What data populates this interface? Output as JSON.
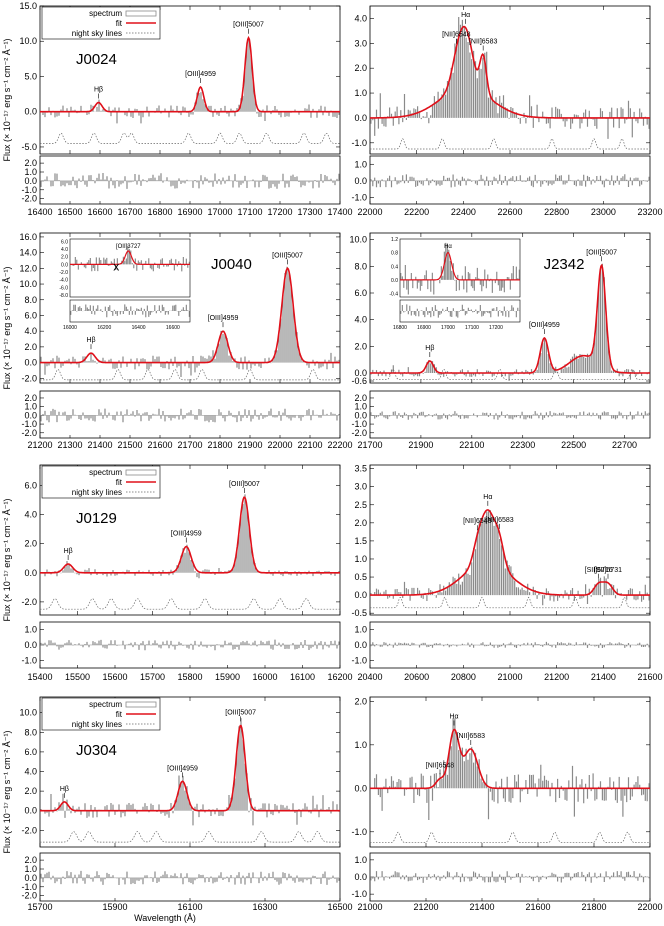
{
  "figure": {
    "ylabel": "Flux (× 10⁻¹⁷ erg s⁻¹ cm⁻² Å⁻¹)",
    "xlabel": "Wavelength (Å)",
    "colors": {
      "spectrum": "#8a8a8a",
      "fit": "#e0101a",
      "sky": "#666666",
      "axis": "#000000"
    }
  },
  "legend": {
    "spectrum": "spectrum",
    "fit": "fit",
    "sky": "night sky lines"
  },
  "chart_data": [
    {
      "id": "J0024-OIII",
      "type": "line",
      "name": "J0024",
      "xlim": [
        16400,
        17400
      ],
      "xticks": [
        16400,
        16500,
        16600,
        16700,
        16800,
        16900,
        17000,
        17100,
        17200,
        17300,
        17400
      ],
      "ylim": [
        -6,
        15
      ],
      "yticks": [
        -5,
        0,
        5,
        10,
        15
      ],
      "ytick_labels": [
        "-5.0",
        "0.0",
        "5.0",
        "10.0",
        "15.0"
      ],
      "residual": {
        "ylim": [
          -2.6,
          2.8
        ],
        "yticks": [
          -2,
          -1,
          0,
          1,
          2
        ],
        "ytick_labels": [
          "-2.0",
          "-1.0",
          "0.0",
          "1.0",
          "2.0"
        ]
      },
      "sky_offset": -4.5,
      "lines": [
        {
          "label": "Hβ",
          "x": 16595,
          "amp": 1.3,
          "sigma": 12
        },
        {
          "label": "[OIII]4959",
          "x": 16935,
          "amp": 3.5,
          "sigma": 11
        },
        {
          "label": "[OIII]5007",
          "x": 17095,
          "amp": 10.5,
          "sigma": 12
        }
      ],
      "sky_lines": [
        16470,
        16580,
        16680,
        16705,
        16895,
        17000,
        17065,
        17155,
        17280,
        17355
      ],
      "noise": 0.9,
      "res_noise": 0.9,
      "has_legend": true,
      "legend_font": 8
    },
    {
      "id": "J0024-Ha",
      "type": "line",
      "name": "",
      "xlim": [
        22000,
        23200
      ],
      "xticks": [
        22000,
        22200,
        22400,
        22600,
        22800,
        23000,
        23200
      ],
      "ylim": [
        -1.45,
        4.5
      ],
      "yticks": [
        -1,
        0,
        1,
        2,
        3,
        4
      ],
      "ytick_labels": [
        "-1.0",
        "0.0",
        "1.0",
        "2.0",
        "3.0",
        "4.0"
      ],
      "residual": {
        "ylim": [
          -1.4,
          1.5
        ],
        "yticks": [
          -1,
          0,
          1
        ],
        "ytick_labels": [
          "-1.0",
          "0.0",
          "1.0"
        ]
      },
      "sky_offset": -1.25,
      "lines": [
        {
          "label": "[NII]6548",
          "x": 22370,
          "amp": 0.8,
          "sigma": 25,
          "nomark": false
        },
        {
          "label": "Hα",
          "x": 22410,
          "amp": 2.2,
          "sigma": 30
        },
        {
          "label": "[NII]6583",
          "x": 22485,
          "amp": 1.5,
          "sigma": 14
        }
      ],
      "broad": {
        "x": 22410,
        "amp": 1.2,
        "sigma": 110
      },
      "sky_lines": [
        22140,
        22310,
        22530,
        22780,
        22960,
        23080
      ],
      "noise": 0.45,
      "res_noise": 0.4,
      "has_legend": false
    },
    {
      "id": "J0040-OIII",
      "type": "line",
      "name": "J0040",
      "xlim": [
        21200,
        22200
      ],
      "xticks": [
        21200,
        21300,
        21400,
        21500,
        21600,
        21700,
        21800,
        21900,
        22000,
        22100,
        22200
      ],
      "ylim": [
        -2.6,
        16.5
      ],
      "yticks": [
        -2,
        0,
        2,
        4,
        6,
        8,
        10,
        12,
        14,
        16
      ],
      "ytick_labels": [
        "-2.0",
        "0.0",
        "2.0",
        "4.0",
        "6.0",
        "8.0",
        "10.0",
        "12.0",
        "14.0",
        "16.0"
      ],
      "residual": {
        "ylim": [
          -2.6,
          2.8
        ],
        "yticks": [
          -2,
          -1,
          0,
          1,
          2
        ],
        "ytick_labels": [
          "-2.0",
          "-1.0",
          "0.0",
          "1.0",
          "2.0"
        ]
      },
      "sky_offset": -2.2,
      "lines": [
        {
          "label": "Hβ",
          "x": 21370,
          "amp": 1.2,
          "sigma": 14
        },
        {
          "label": "[OIII]4959",
          "x": 21810,
          "amp": 4.0,
          "sigma": 16
        },
        {
          "label": "[OIII]5007",
          "x": 22025,
          "amp": 12.0,
          "sigma": 19
        }
      ],
      "sky_lines": [
        21260,
        21460,
        21560,
        21650,
        21740,
        21900,
        22110
      ],
      "noise": 0.9,
      "res_noise": 0.8,
      "has_legend": false,
      "inset": {
        "label": "[OII]3727",
        "mark": "x",
        "xlim": [
          16000,
          16700
        ],
        "xticks": [
          16000,
          16200,
          16400,
          16600
        ],
        "ylim": [
          -8.5,
          6.6
        ],
        "yticks": [
          -8,
          -6,
          -4,
          -2,
          0,
          2,
          4,
          6
        ],
        "ytick_labels": [
          "-8.0",
          "-6.0",
          "-4.0",
          "-2.0",
          "0.0",
          "2.0",
          "4.0",
          "6.0"
        ],
        "line_x": 16340,
        "amp": 3.5,
        "sigma": 18
      }
    },
    {
      "id": "J2342-OIII",
      "type": "line",
      "name": "J2342",
      "xlim": [
        21700,
        22800
      ],
      "xticks": [
        21700,
        21900,
        22100,
        22300,
        22500,
        22700
      ],
      "ylim": [
        -0.75,
        10.5
      ],
      "yticks": [
        -0.6,
        0,
        2,
        4,
        6,
        8,
        10
      ],
      "ytick_labels": [
        "-0.6",
        "0.0",
        "2.0",
        "4.0",
        "6.0",
        "8.0",
        "10.0"
      ],
      "residual": {
        "ylim": [
          -2.6,
          2.8
        ],
        "yticks": [
          -2,
          -1,
          0,
          1,
          2
        ],
        "ytick_labels": [
          "-2.0",
          "-1.0",
          "0.0",
          "1.0",
          "2.0"
        ]
      },
      "sky_offset": -0.5,
      "lines": [
        {
          "label": "Hβ",
          "x": 21935,
          "amp": 0.9,
          "sigma": 14
        },
        {
          "label": "[OIII]4959",
          "x": 22385,
          "amp": 2.6,
          "sigma": 16
        },
        {
          "label": "[OIII]5007",
          "x": 22610,
          "amp": 7.5,
          "sigma": 16
        }
      ],
      "broad": {
        "x": 22540,
        "amp": 1.3,
        "sigma": 55
      },
      "sky_lines": [
        21790,
        21990,
        22210,
        22430,
        22730
      ],
      "noise": 0.3,
      "res_noise": 0.5,
      "has_legend": false,
      "inset": {
        "label": "Hα",
        "mark": "",
        "xlim": [
          16800,
          17300
        ],
        "xticks": [
          16800,
          16900,
          17000,
          17100,
          17200
        ],
        "ylim": [
          -0.5,
          1.2
        ],
        "yticks": [
          -0.4,
          0,
          0.4,
          0.8,
          1.2
        ],
        "ytick_labels": [
          "-0.4",
          "0.0",
          "0.4",
          "0.8",
          "1.2"
        ],
        "line_x": 17000,
        "amp": 0.8,
        "sigma": 15
      }
    },
    {
      "id": "J0129-OIII",
      "type": "line",
      "name": "J0129",
      "xlim": [
        15400,
        16200
      ],
      "xticks": [
        15400,
        15500,
        15600,
        15700,
        15800,
        15900,
        16000,
        16100,
        16200
      ],
      "ylim": [
        -2.9,
        7.4
      ],
      "yticks": [
        -2,
        0,
        2,
        4,
        6
      ],
      "ytick_labels": [
        "-2.0",
        "0.0",
        "2.0",
        "4.0",
        "6.0"
      ],
      "residual": {
        "ylim": [
          -1.5,
          1.5
        ],
        "yticks": [
          -1,
          0,
          1
        ],
        "ytick_labels": [
          "-1.0",
          "0.0",
          "1.0"
        ]
      },
      "sky_offset": -2.5,
      "lines": [
        {
          "label": "Hβ",
          "x": 15475,
          "amp": 0.6,
          "sigma": 12
        },
        {
          "label": "[OIII]4959",
          "x": 15790,
          "amp": 1.8,
          "sigma": 13
        },
        {
          "label": "[OIII]5007",
          "x": 15945,
          "amp": 5.2,
          "sigma": 13
        }
      ],
      "sky_lines": [
        15440,
        15540,
        15590,
        15660,
        15750,
        15840,
        15970,
        16040,
        16110
      ],
      "noise": 0.25,
      "res_noise": 0.35,
      "has_legend": true,
      "legend_font": 8
    },
    {
      "id": "J0129-Ha",
      "type": "line",
      "name": "",
      "xlim": [
        20400,
        21600
      ],
      "xticks": [
        20400,
        20600,
        20800,
        21000,
        21200,
        21400,
        21600
      ],
      "ylim": [
        -0.55,
        3.6
      ],
      "yticks": [
        -0.5,
        0,
        0.5,
        1,
        1.5,
        2,
        2.5,
        3,
        3.5
      ],
      "ytick_labels": [
        "-0.5",
        "0.0",
        "0.5",
        "1.0",
        "1.5",
        "2.0",
        "2.5",
        "3.0",
        "3.5"
      ],
      "residual": {
        "ylim": [
          -1.5,
          1.5
        ],
        "yticks": [
          -1,
          0,
          1
        ],
        "ytick_labels": [
          "-1.0",
          "0.0",
          "1.0"
        ]
      },
      "sky_offset": -0.35,
      "lines": [
        {
          "label": "[NII]6548",
          "x": 20860,
          "amp": 0.4,
          "sigma": 20
        },
        {
          "label": "Hα",
          "x": 20905,
          "amp": 1.4,
          "sigma": 30
        },
        {
          "label": "[NII]6583",
          "x": 20955,
          "amp": 0.6,
          "sigma": 20
        },
        {
          "label": "[SII]6716",
          "x": 21380,
          "amp": 0.3,
          "sigma": 20
        },
        {
          "label": "[SII]6731",
          "x": 21420,
          "amp": 0.3,
          "sigma": 20
        }
      ],
      "broad": {
        "x": 20900,
        "amp": 0.9,
        "sigma": 100
      },
      "sky_lines": [
        20530,
        20720,
        20880,
        21080,
        21280,
        21490
      ],
      "noise": 0.2,
      "res_noise": 0.2,
      "has_legend": false
    },
    {
      "id": "J0304-OIII",
      "type": "line",
      "name": "J0304",
      "xlim": [
        15700,
        16500
      ],
      "xticks": [
        15700,
        15900,
        16100,
        16300,
        16500
      ],
      "ylim": [
        -3.7,
        11.6
      ],
      "yticks": [
        -2,
        0,
        2,
        4,
        6,
        8,
        10
      ],
      "ytick_labels": [
        "-2.0",
        "0.0",
        "2.0",
        "4.0",
        "6.0",
        "8.0",
        "10.0"
      ],
      "residual": {
        "ylim": [
          -2.6,
          2.8
        ],
        "yticks": [
          -2,
          -1,
          0,
          1,
          2
        ],
        "ytick_labels": [
          "-2.0",
          "-1.0",
          "0.0",
          "1.0",
          "2.0"
        ]
      },
      "sky_offset": -3.2,
      "lines": [
        {
          "label": "Hβ",
          "x": 15765,
          "amp": 0.9,
          "sigma": 10
        },
        {
          "label": "[OIII]4959",
          "x": 16080,
          "amp": 3.0,
          "sigma": 12
        },
        {
          "label": "[OIII]5007",
          "x": 16235,
          "amp": 8.7,
          "sigma": 12
        }
      ],
      "sky_lines": [
        15790,
        15830,
        15960,
        16010,
        16150,
        16290,
        16390,
        16440
      ],
      "noise": 0.8,
      "res_noise": 0.8,
      "has_legend": true,
      "legend_font": 8
    },
    {
      "id": "J0304-Ha",
      "type": "line",
      "name": "",
      "xlim": [
        21000,
        22000
      ],
      "xticks": [
        21000,
        21200,
        21400,
        21600,
        21800,
        22000
      ],
      "ylim": [
        -1.35,
        2.1
      ],
      "yticks": [
        -1,
        0,
        1,
        2
      ],
      "ytick_labels": [
        "-1.0",
        "0.0",
        "1.0",
        "2.0"
      ],
      "residual": {
        "ylim": [
          -1.4,
          1.4
        ],
        "yticks": [
          -1,
          0,
          1
        ],
        "ytick_labels": [
          "-1.0",
          "0.0",
          "1.0"
        ]
      },
      "sky_offset": -1.25,
      "lines": [
        {
          "label": "[NII]6548",
          "x": 21250,
          "amp": 0.2,
          "sigma": 15
        },
        {
          "label": "Hα",
          "x": 21300,
          "amp": 1.3,
          "sigma": 18
        },
        {
          "label": "[NII]6583",
          "x": 21360,
          "amp": 0.9,
          "sigma": 25
        }
      ],
      "sky_lines": [
        21100,
        21220,
        21510,
        21660,
        21820,
        21920
      ],
      "noise": 0.35,
      "res_noise": 0.35,
      "has_legend": false
    }
  ]
}
